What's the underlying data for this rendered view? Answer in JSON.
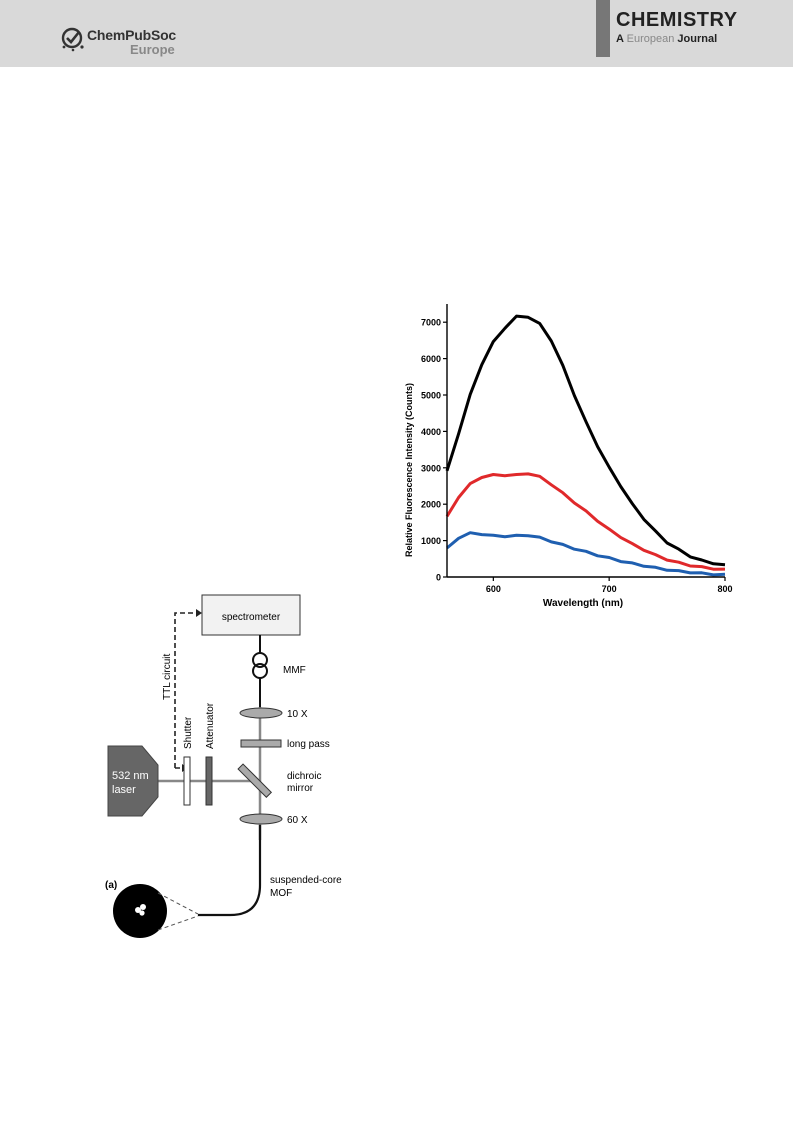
{
  "header": {
    "publisher_line1": "ChemPubSoc",
    "publisher_line2": "Europe",
    "journal_title": "CHEMISTRY",
    "journal_sub_a": "A",
    "journal_sub_b": "European",
    "journal_sub_c": "Journal"
  },
  "diagram": {
    "panel_label": "(a)",
    "spectrometer": "spectrometer",
    "ttl": "TTL circuit",
    "mmf": "MMF",
    "obj10": "10 X",
    "long_pass": "long pass",
    "shutter": "Shutter",
    "attenuator": "Attenuator",
    "laser_line1": "532 nm",
    "laser_line2": "laser",
    "dichroic_line1": "dichroic",
    "dichroic_line2": "mirror",
    "obj60": "60 X",
    "mof_line1": "suspended-core",
    "mof_line2": "MOF"
  },
  "chart_data": {
    "type": "line",
    "xlabel": "Wavelength (nm)",
    "ylabel": "Relative Fluorescence Intensity (Counts)",
    "xlim": [
      560,
      800
    ],
    "ylim": [
      0,
      7500
    ],
    "xticks": [
      600,
      700,
      800
    ],
    "yticks": [
      0,
      1000,
      2000,
      3000,
      4000,
      5000,
      6000,
      7000
    ],
    "grid": false,
    "series": [
      {
        "color": "#000000",
        "x": [
          560,
          570,
          580,
          590,
          600,
          610,
          620,
          630,
          640,
          650,
          660,
          670,
          680,
          690,
          700,
          710,
          720,
          730,
          740,
          750,
          760,
          770,
          780,
          790,
          800
        ],
        "y": [
          2900,
          3950,
          5000,
          5850,
          6450,
          6850,
          7150,
          7150,
          6950,
          6500,
          5800,
          5000,
          4250,
          3600,
          3000,
          2500,
          2000,
          1600,
          1250,
          950,
          750,
          570,
          450,
          380,
          320
        ]
      },
      {
        "color": "#e0292b",
        "x": [
          560,
          570,
          580,
          590,
          600,
          610,
          620,
          630,
          640,
          650,
          660,
          670,
          680,
          690,
          700,
          710,
          720,
          730,
          740,
          750,
          760,
          770,
          780,
          790,
          800
        ],
        "y": [
          1650,
          2200,
          2550,
          2750,
          2800,
          2800,
          2800,
          2850,
          2750,
          2550,
          2300,
          2050,
          1800,
          1550,
          1300,
          1100,
          900,
          750,
          600,
          480,
          390,
          320,
          270,
          230,
          200
        ]
      },
      {
        "color": "#1f5fb0",
        "x": [
          560,
          570,
          580,
          590,
          600,
          610,
          620,
          630,
          640,
          650,
          660,
          670,
          680,
          690,
          700,
          710,
          720,
          730,
          740,
          750,
          760,
          770,
          780,
          790,
          800
        ],
        "y": [
          780,
          1080,
          1200,
          1180,
          1130,
          1120,
          1130,
          1150,
          1080,
          980,
          880,
          780,
          690,
          600,
          520,
          440,
          370,
          310,
          250,
          200,
          160,
          130,
          100,
          75,
          60
        ]
      }
    ]
  }
}
